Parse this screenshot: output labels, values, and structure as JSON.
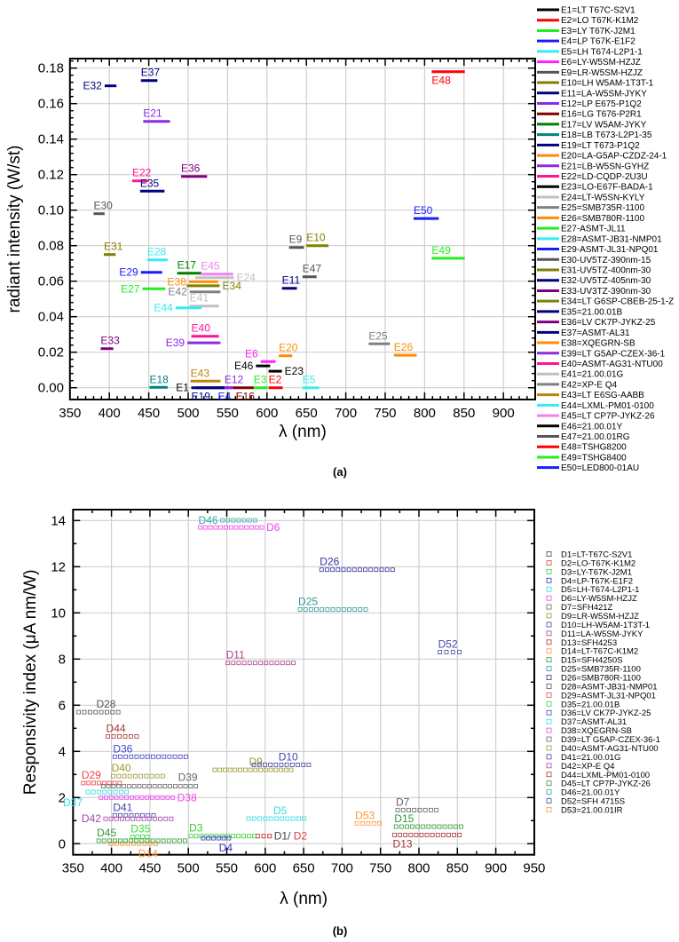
{
  "chart_data": [
    {
      "type": "line",
      "panel": "a",
      "caption": "(a)",
      "xlabel": "λ (nm)",
      "ylabel": "radiant intensity (W/st)",
      "xlim": [
        350,
        940
      ],
      "ylim": [
        -0.0067,
        0.185
      ],
      "xticks": [
        350,
        400,
        450,
        500,
        550,
        600,
        650,
        700,
        750,
        800,
        850,
        900
      ],
      "yticks": [
        0.0,
        0.02,
        0.04,
        0.06,
        0.08,
        0.1,
        0.12,
        0.14,
        0.16,
        0.18
      ],
      "grid": true,
      "legend_position": "right",
      "series": [
        {
          "id": "E1",
          "name": "E1=LT T67C-S2V1",
          "x": [
            510,
            545
          ],
          "y": 0.0,
          "color": "#000000",
          "pos": "left"
        },
        {
          "id": "E2",
          "name": "E2=LO T67K-K1M2",
          "x": [
            602,
            620
          ],
          "y": 0.0,
          "color": "#ff0000",
          "pos": "above"
        },
        {
          "id": "E3",
          "name": "E3=LY T67K-J2M1",
          "x": [
            583,
            601
          ],
          "y": 0.0,
          "color": "#22ee22",
          "pos": "above"
        },
        {
          "id": "E4",
          "name": "E4=LP T67K-E1F2",
          "x": [
            540,
            556
          ],
          "y": 0.0,
          "color": "#1a1aff",
          "pos": "below"
        },
        {
          "id": "E5",
          "name": "E5=LH T674-L2P1-1",
          "x": [
            645,
            666
          ],
          "y": 0.0,
          "color": "#33eeee",
          "pos": "above"
        },
        {
          "id": "E6",
          "name": "E6=LY-W5SM-HZJZ",
          "x": [
            592,
            611
          ],
          "y": 0.0147,
          "color": "#ff22ff",
          "pos": "left"
        },
        {
          "id": "E9",
          "name": "E9=LR-W5SM-HZJZ",
          "x": [
            628,
            647
          ],
          "y": 0.079,
          "color": "#555555",
          "pos": "above"
        },
        {
          "id": "E10",
          "name": "E10=LH W5AM-1T3T-1",
          "x": [
            650,
            678
          ],
          "y": 0.08,
          "color": "#808000",
          "pos": "above"
        },
        {
          "id": "E11",
          "name": "E11=LA-W5SM-JYKY",
          "x": [
            619,
            638
          ],
          "y": 0.056,
          "color": "#000080",
          "pos": "above"
        },
        {
          "id": "E12",
          "name": "E12=LP E675-P1Q2",
          "x": [
            546,
            560
          ],
          "y": 0.0,
          "color": "#8a2be2",
          "pos": "above"
        },
        {
          "id": "E16",
          "name": "E16=LG T676-P2R1",
          "x": [
            557,
            583
          ],
          "y": 0.0,
          "color": "#800000",
          "pos": "below"
        },
        {
          "id": "E17",
          "name": "E17=LV W5AM-JYKY",
          "x": [
            486,
            517
          ],
          "y": 0.0645,
          "color": "#008000",
          "pos": "above"
        },
        {
          "id": "E18",
          "name": "E18=LB T673-L2P1-35",
          "x": [
            451,
            474
          ],
          "y": 0.0002,
          "color": "#008080",
          "pos": "above"
        },
        {
          "id": "E19",
          "name": "E19=LT T673-P1Q2",
          "x": [
            504,
            546
          ],
          "y": 0.0,
          "color": "#000080",
          "pos": "below"
        },
        {
          "id": "E20",
          "name": "E20=LA-G5AP-CZDZ-24-1",
          "x": [
            615,
            632
          ],
          "y": 0.018,
          "color": "#ff8c00",
          "pos": "above"
        },
        {
          "id": "E21",
          "name": "E21=LB-W5SN-GYHZ",
          "x": [
            443,
            477
          ],
          "y": 0.15,
          "color": "#8a2be2",
          "pos": "above"
        },
        {
          "id": "E22",
          "name": "E22=LD-CQDP-2U3U",
          "x": [
            429,
            449
          ],
          "y": 0.1165,
          "color": "#ff1493",
          "pos": "above"
        },
        {
          "id": "E23",
          "name": "E23=LO-E67F-BADA-1",
          "x": [
            602,
            619
          ],
          "y": 0.0093,
          "color": "#000000",
          "pos": "right"
        },
        {
          "id": "E24",
          "name": "E24=LT-W5SN-KYLY",
          "x": [
            509,
            558
          ],
          "y": 0.062,
          "color": "#c0c0c0",
          "pos": "right"
        },
        {
          "id": "E25",
          "name": "E25=SMB735R-1100",
          "x": [
            729,
            756
          ],
          "y": 0.0247,
          "color": "#808080",
          "pos": "above"
        },
        {
          "id": "E26",
          "name": "E26=SMB780R-1100",
          "x": [
            761,
            790
          ],
          "y": 0.0183,
          "color": "#ff8c00",
          "pos": "above"
        },
        {
          "id": "E27",
          "name": "E27-ASMT-JL11",
          "x": [
            442,
            471
          ],
          "y": 0.0557,
          "color": "#22ee22",
          "pos": "left"
        },
        {
          "id": "E28",
          "name": "E28=ASMT-JB31-NMP01",
          "x": [
            448,
            474
          ],
          "y": 0.072,
          "color": "#33eeee",
          "pos": "above"
        },
        {
          "id": "E29",
          "name": "E29-ASMT-JL31-NPQ01",
          "x": [
            440,
            467
          ],
          "y": 0.065,
          "color": "#1a1aff",
          "pos": "left"
        },
        {
          "id": "E30",
          "name": "E30-UV5TZ-390nm-15",
          "x": [
            380,
            394
          ],
          "y": 0.098,
          "color": "#555555",
          "pos": "above"
        },
        {
          "id": "E31",
          "name": "E31-UV5TZ-400nm-30",
          "x": [
            393,
            408
          ],
          "y": 0.075,
          "color": "#808000",
          "pos": "above"
        },
        {
          "id": "E32",
          "name": "E32-UV5TZ-405nm-30",
          "x": [
            394,
            409
          ],
          "y": 0.17,
          "color": "#000080",
          "pos": "left"
        },
        {
          "id": "E33",
          "name": "E33-UV3TZ-390nm-30",
          "x": [
            389,
            405
          ],
          "y": 0.022,
          "color": "#800080",
          "pos": "above"
        },
        {
          "id": "E34",
          "name": "E34=LT G6SP-CBEB-25-1-Z",
          "x": [
            498,
            540
          ],
          "y": 0.0574,
          "color": "#808000",
          "pos": "right"
        },
        {
          "id": "E35",
          "name": "E35=21.00.01B",
          "x": [
            439,
            470
          ],
          "y": 0.1107,
          "color": "#000080",
          "pos": "above"
        },
        {
          "id": "E36",
          "name": "E36=LV CK7P-JYKZ-25",
          "x": [
            491,
            524
          ],
          "y": 0.119,
          "color": "#800080",
          "pos": "above"
        },
        {
          "id": "E37",
          "name": "E37=ASMT-AL31",
          "x": [
            440,
            461
          ],
          "y": 0.173,
          "color": "#000080",
          "pos": "above"
        },
        {
          "id": "E38",
          "name": "E38=XQEGRN-SB",
          "x": [
            501,
            538
          ],
          "y": 0.0597,
          "color": "#ff8c00",
          "pos": "left"
        },
        {
          "id": "E39",
          "name": "E39=LT G5AP-CZEX-36-1",
          "x": [
            499,
            541
          ],
          "y": 0.0253,
          "color": "#8a2be2",
          "pos": "left"
        },
        {
          "id": "E40",
          "name": "E40=ASMT-AG31-NTU00",
          "x": [
            504,
            539
          ],
          "y": 0.029,
          "color": "#ff1493",
          "pos": "above"
        },
        {
          "id": "E41",
          "name": "E41=21.00.01G",
          "x": [
            502,
            539
          ],
          "y": 0.046,
          "color": "#c0c0c0",
          "pos": "above"
        },
        {
          "id": "E42",
          "name": "E42=XP-E Q4",
          "x": [
            502,
            541
          ],
          "y": 0.054,
          "color": "#808080",
          "pos": "left"
        },
        {
          "id": "E43",
          "name": "E43=LT E6SG-AABB",
          "x": [
            503,
            541
          ],
          "y": 0.0037,
          "color": "#b8860b",
          "pos": "above"
        },
        {
          "id": "E44",
          "name": "E44=LXML-PM01-0100",
          "x": [
            484,
            517
          ],
          "y": 0.045,
          "color": "#33eeee",
          "pos": "left"
        },
        {
          "id": "E45",
          "name": "E45=LT CP7P-JYKZ-26",
          "x": [
            516,
            557
          ],
          "y": 0.064,
          "color": "#ee82ee",
          "pos": "above"
        },
        {
          "id": "E46",
          "name": "E46=21.00.01Y",
          "x": [
            586,
            604
          ],
          "y": 0.0123,
          "color": "#000000",
          "pos": "left"
        },
        {
          "id": "E47",
          "name": "E47=21.00.01RG",
          "x": [
            645,
            663
          ],
          "y": 0.0625,
          "color": "#555555",
          "pos": "above"
        },
        {
          "id": "E48",
          "name": "E48=TSHG8200",
          "x": [
            809,
            851
          ],
          "y": 0.178,
          "color": "#ff0000",
          "pos": "below"
        },
        {
          "id": "E49",
          "name": "E49=TSHG8400",
          "x": [
            809,
            851
          ],
          "y": 0.0729,
          "color": "#22ee22",
          "pos": "above"
        },
        {
          "id": "E50",
          "name": "E50=LED800-01AU",
          "x": [
            786,
            818
          ],
          "y": 0.0953,
          "color": "#1a1aff",
          "pos": "above"
        }
      ]
    },
    {
      "type": "scatter",
      "panel": "b",
      "caption": "(b)",
      "xlabel": "λ (nm)",
      "ylabel": "Responsivity index (μA nm/W)",
      "xlim": [
        350,
        950
      ],
      "ylim": [
        -0.48,
        14.47
      ],
      "xticks": [
        350,
        400,
        450,
        500,
        550,
        600,
        650,
        700,
        750,
        800,
        850,
        900,
        950
      ],
      "yticks": [
        0,
        2,
        4,
        6,
        8,
        10,
        12,
        14
      ],
      "grid": true,
      "legend_position": "right",
      "series": [
        {
          "id": "D1",
          "name": "D1=LT-T67C-S2V1",
          "x": [
            588,
            608
          ],
          "y": 0.33,
          "color": "#444444",
          "pos": "right",
          "label": "D1/"
        },
        {
          "id": "D2",
          "name": "D2=LO-T67K-K1M2",
          "x": [
            588,
            608
          ],
          "y": 0.33,
          "color": "#e04040",
          "pos": "right2",
          "label": "D2"
        },
        {
          "id": "D3",
          "name": "D3=LY-T67K-J2M1",
          "x": [
            501,
            588
          ],
          "y": 0.33,
          "color": "#33cc33",
          "pos": "above"
        },
        {
          "id": "D4",
          "name": "D4=LP-T67K-E1F2",
          "x": [
            517,
            555
          ],
          "y": 0.24,
          "color": "#3333cc",
          "pos": "below-right"
        },
        {
          "id": "D5",
          "name": "D5=LH-T674-L2P1-1",
          "x": [
            576,
            653
          ],
          "y": 1.09,
          "color": "#33dddd",
          "pos": "above-right"
        },
        {
          "id": "D6",
          "name": "D6=LY-W5SM-HZJZ",
          "x": [
            513,
            598
          ],
          "y": 13.7,
          "color": "#ee44ee",
          "pos": "right"
        },
        {
          "id": "D7",
          "name": "D7=SFH421Z",
          "x": [
            770,
            825
          ],
          "y": 1.46,
          "color": "#666666",
          "pos": "above"
        },
        {
          "id": "D9",
          "name": "D9=LR-W5SM-HZJZ",
          "x": [
            532,
            636
          ],
          "y": 3.2,
          "color": "#999933",
          "pos": "above-right"
        },
        {
          "id": "D10",
          "name": "D10=LH-W5AM-1T3T-1",
          "x": [
            583,
            659
          ],
          "y": 3.42,
          "color": "#4444aa",
          "pos": "above-right"
        },
        {
          "id": "D11",
          "name": "D11=LA-W5SM-JYKY",
          "x": [
            549,
            639
          ],
          "y": 7.83,
          "color": "#aa4488",
          "pos": "above"
        },
        {
          "id": "D13",
          "name": "D13=SFH4253",
          "x": [
            766,
            855
          ],
          "y": 0.38,
          "color": "#aa3333",
          "pos": "below"
        },
        {
          "id": "D14",
          "name": "D14=LT-T67C-K1M2",
          "x": [
            397,
            460
          ],
          "y": 0.0,
          "color": "#ff9933",
          "pos": "below-right"
        },
        {
          "id": "D15",
          "name": "D15=SFH4250S",
          "x": [
            768,
            857
          ],
          "y": 0.74,
          "color": "#339933",
          "pos": "above"
        },
        {
          "id": "D25",
          "name": "D25=SMB735R-1100",
          "x": [
            643,
            733
          ],
          "y": 10.15,
          "color": "#339999",
          "pos": "above"
        },
        {
          "id": "D26",
          "name": "D26=SMB780R-1100",
          "x": [
            671,
            768
          ],
          "y": 11.87,
          "color": "#333399",
          "pos": "above"
        },
        {
          "id": "D28",
          "name": "D28=ASMT-JB31-NMP01",
          "x": [
            355,
            411
          ],
          "y": 5.7,
          "color": "#555555",
          "pos": "above-right"
        },
        {
          "id": "D29",
          "name": "D29=ASMT-JL31-NPQ01",
          "x": [
            361,
            413
          ],
          "y": 2.63,
          "color": "#ee4444",
          "pos": "above"
        },
        {
          "id": "D35",
          "name": "D35=21.00.01B",
          "x": [
            425,
            449
          ],
          "y": 0.3,
          "color": "#33dd33",
          "pos": "above"
        },
        {
          "id": "D36",
          "name": "D36=LV CK7P-JYKZ-25",
          "x": [
            402,
            499
          ],
          "y": 3.77,
          "color": "#4444cc",
          "pos": "above"
        },
        {
          "id": "D37",
          "name": "D37=ASMT-AL31",
          "x": [
            367,
            422
          ],
          "y": 2.24,
          "color": "#33dddd",
          "pos": "below-left"
        },
        {
          "id": "D38",
          "name": "D38=XQEGRN-SB",
          "x": [
            384,
            482
          ],
          "y": 2.0,
          "color": "#ee44ee",
          "pos": "right"
        },
        {
          "id": "D39",
          "name": "D39=LT G5AP-CZEX-36-1",
          "x": [
            387,
            512
          ],
          "y": 2.49,
          "color": "#666666",
          "pos": "above-end"
        },
        {
          "id": "D40",
          "name": "D40=ASMT-AG31-NTU00",
          "x": [
            400,
            469
          ],
          "y": 2.93,
          "color": "#999933",
          "pos": "above"
        },
        {
          "id": "D41",
          "name": "D41=21.00.01G",
          "x": [
            402,
            457
          ],
          "y": 1.23,
          "color": "#4444aa",
          "pos": "above"
        },
        {
          "id": "D42",
          "name": "D42=XP-E Q4",
          "x": [
            390,
            480
          ],
          "y": 1.08,
          "color": "#aa44aa",
          "pos": "left"
        },
        {
          "id": "D44",
          "name": "D44=LXML-PM01-0100",
          "x": [
            393,
            435
          ],
          "y": 4.65,
          "color": "#aa3333",
          "pos": "above"
        },
        {
          "id": "D45",
          "name": "D45=LT CP7P-JYKZ-26",
          "x": [
            381,
            498
          ],
          "y": 0.13,
          "color": "#339933",
          "pos": "above"
        },
        {
          "id": "D46",
          "name": "D46=21.00.01Y",
          "x": [
            542,
            589
          ],
          "y": 14.01,
          "color": "#33aaaa",
          "pos": "left"
        },
        {
          "id": "D52",
          "name": "D52=SFH 4715S",
          "x": [
            825,
            855
          ],
          "y": 8.3,
          "color": "#4444aa",
          "pos": "above"
        },
        {
          "id": "D53",
          "name": "D53=21.00.01IR",
          "x": [
            717,
            751
          ],
          "y": 0.88,
          "color": "#ff9933",
          "pos": "above"
        }
      ]
    }
  ]
}
